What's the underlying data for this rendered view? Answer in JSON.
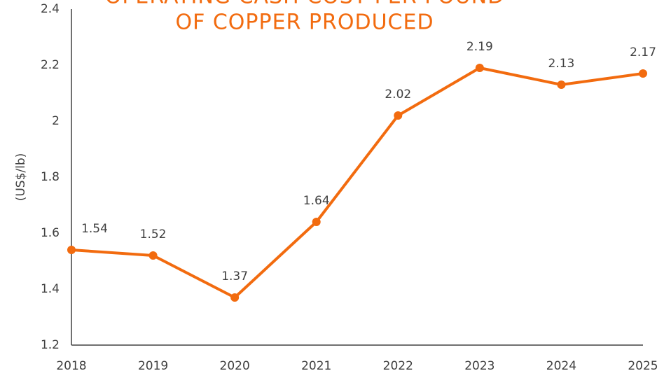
{
  "chart_data": {
    "type": "line",
    "title_lines": [
      "OPERATING CASH COST PER POUND",
      "OF COPPER PRODUCED"
    ],
    "y_label": "(US$/lb)",
    "categories": [
      "2018",
      "2019",
      "2020",
      "2021",
      "2022",
      "2023",
      "2024",
      "2025"
    ],
    "series": [
      {
        "name": "Operating cash cost",
        "color": "#f26b0f",
        "values": [
          1.54,
          1.52,
          1.37,
          1.64,
          2.02,
          2.19,
          2.13,
          2.17
        ]
      }
    ],
    "ylim": [
      1.2,
      2.4
    ],
    "yticks": [
      1.2,
      1.4,
      1.6,
      1.8,
      2,
      2.2,
      2.4
    ],
    "grid": false
  }
}
